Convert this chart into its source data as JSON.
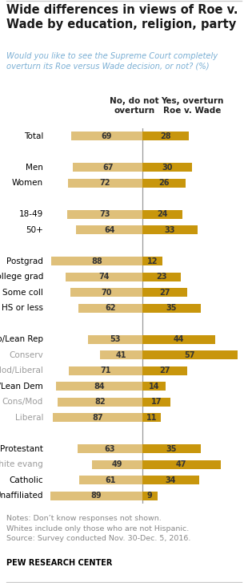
{
  "title": "Wide differences in views of Roe v.\nWade by education, religion, party",
  "subtitle": "Would you like to see the Supreme Court completely\noverturn its Roe versus Wade decision, or not? (%)",
  "col1_header": "No, do not\noverturn",
  "col2_header": "Yes, overturn\nRoe v. Wade",
  "categories": [
    "Total",
    null,
    "Men",
    "Women",
    null,
    "18-49",
    "50+",
    null,
    "Postgrad",
    "College grad",
    "Some coll",
    "HS or less",
    null,
    "Rep/Lean Rep",
    "Conserv",
    "Mod/Liberal",
    "Dem/Lean Dem",
    "Cons/Mod",
    "Liberal",
    null,
    "Protestant",
    "White evang",
    "Catholic",
    "Unaffiliated"
  ],
  "no_overturn": [
    69,
    null,
    67,
    72,
    null,
    73,
    64,
    null,
    88,
    74,
    70,
    62,
    null,
    53,
    41,
    71,
    84,
    82,
    87,
    null,
    63,
    49,
    61,
    89
  ],
  "yes_overturn": [
    28,
    null,
    30,
    26,
    null,
    24,
    33,
    null,
    12,
    23,
    27,
    35,
    null,
    44,
    57,
    27,
    14,
    17,
    11,
    null,
    35,
    47,
    34,
    9
  ],
  "label_colors": [
    "black",
    null,
    "black",
    "black",
    null,
    "black",
    "black",
    null,
    "black",
    "black",
    "black",
    "black",
    null,
    "black",
    "#9b9b9b",
    "#9b9b9b",
    "black",
    "#9b9b9b",
    "#9b9b9b",
    null,
    "black",
    "#9b9b9b",
    "black",
    "black"
  ],
  "color_no": "#dfc07a",
  "color_yes": "#c8960c",
  "notes": "Notes: Don’t know responses not shown.\nWhites include only those who are not Hispanic.\nSource: Survey conducted Nov. 30-Dec. 5, 2016.",
  "source": "PEW RESEARCH CENTER",
  "title_color": "#1a1a1a",
  "subtitle_color": "#7bafd4",
  "notes_color": "#888888",
  "divider_color": "#999999",
  "border_color": "#cccccc"
}
